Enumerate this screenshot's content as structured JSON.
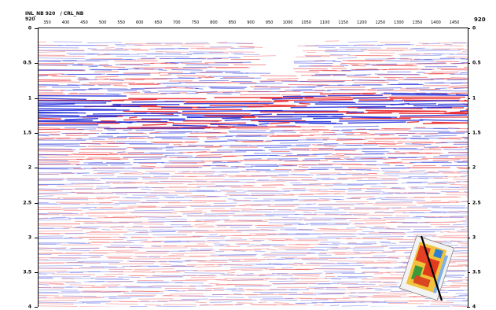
{
  "header": {
    "line_label": "INL_NB 920",
    "crossline_label": "/ CRL_NB",
    "left_trace": "920",
    "right_trace": "920"
  },
  "x_axis": {
    "ticks": [
      "350",
      "400",
      "450",
      "500",
      "550",
      "600",
      "650",
      "700",
      "750",
      "800",
      "850",
      "900",
      "950",
      "1000",
      "1050",
      "1100",
      "1150",
      "1200",
      "1250",
      "1300",
      "1350",
      "1400",
      "1450"
    ]
  },
  "y_axis": {
    "ticks": [
      "0",
      "0.5",
      "1",
      "1.5",
      "2",
      "2.5",
      "3",
      "3.5",
      "4"
    ]
  },
  "colors": {
    "positive": "#e8191e",
    "negative": "#1a24d6",
    "background": "#ffffff"
  },
  "inset": {
    "description_icon": "location-map-icon"
  }
}
